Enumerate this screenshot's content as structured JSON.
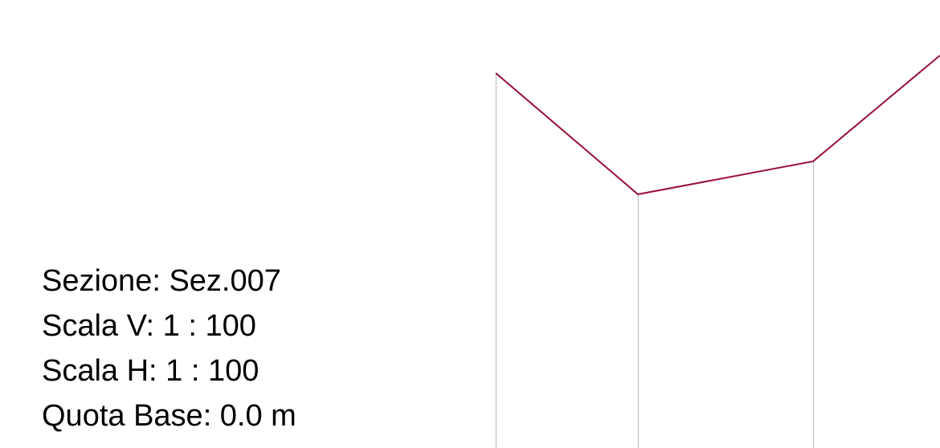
{
  "section_info": {
    "lines": [
      "Sezione: Sez.007",
      "Scala V: 1 : 100",
      "Scala H: 1 : 100",
      "Quota Base: 0.0 m"
    ]
  }
}
